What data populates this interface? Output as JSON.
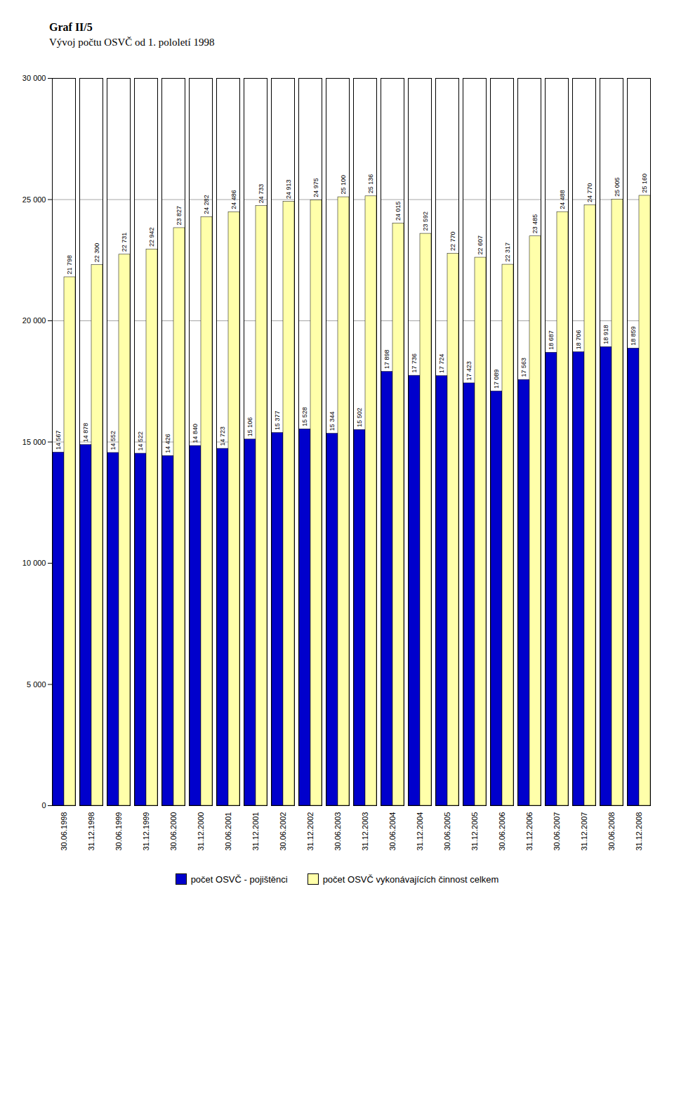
{
  "chart_data": {
    "type": "bar",
    "title": "Graf II/5",
    "subtitle": "Vývoj počtu OSVČ od 1. pololetí 1998",
    "categories": [
      "30.06.1998",
      "31.12.1998",
      "30.06.1999",
      "31.12.1999",
      "30.06.2000",
      "31.12.2000",
      "30.06.2001",
      "31.12.2001",
      "30.06.2002",
      "31.12.2002",
      "30.06.2003",
      "31.12.2003",
      "30.06.2004",
      "31.12.2004",
      "30.06.2005",
      "31.12.2005",
      "30.06.2006",
      "31.12.2006",
      "30.06.2007",
      "31.12.2007",
      "30.06.2008",
      "31.12.2008"
    ],
    "series": [
      {
        "name": "počet OSVČ - pojištěnci",
        "color": "#0000CC",
        "values": [
          14567,
          14878,
          14552,
          14522,
          14426,
          14840,
          14723,
          15106,
          15377,
          15528,
          15344,
          15502,
          17898,
          17736,
          17724,
          17423,
          17089,
          17563,
          18687,
          18706,
          18918,
          18859
        ],
        "value_labels": [
          "14 567",
          "14 878",
          "14 552",
          "14 522",
          "14 426",
          "14 840",
          "14 723",
          "15 106",
          "15 377",
          "15 528",
          "15 344",
          "15 502",
          "17 898",
          "17 736",
          "17 724",
          "17 423",
          "17 089",
          "17 563",
          "18 687",
          "18 706",
          "18 918",
          "18 859"
        ]
      },
      {
        "name": "počet OSVČ vykonávajících činnost celkem",
        "color": "#FFFFAA",
        "values": [
          21798,
          22300,
          22731,
          22942,
          23827,
          24282,
          24486,
          24733,
          24913,
          24975,
          25100,
          25136,
          24015,
          23592,
          22770,
          22607,
          22317,
          23485,
          24488,
          24770,
          25005,
          25160
        ],
        "value_labels": [
          "21 798",
          "22 300",
          "22 731",
          "22 942",
          "23 827",
          "24 282",
          "24 486",
          "24 733",
          "24 913",
          "24 975",
          "25 100",
          "25 136",
          "24 015",
          "23 592",
          "22 770",
          "22 607",
          "22 317",
          "23 485",
          "24 488",
          "24 770",
          "25 005",
          "25 160"
        ]
      }
    ],
    "ylim": [
      0,
      30000
    ],
    "yticks": [
      0,
      {
        "value": 5000,
        "label": "5 000"
      },
      {
        "value": 10000,
        "label": "10 000"
      },
      {
        "value": 15000,
        "label": "15 000"
      },
      {
        "value": 20000,
        "label": "20 000"
      },
      {
        "value": 25000,
        "label": "25 000"
      },
      {
        "value": 30000,
        "label": "30 000"
      }
    ],
    "grid": true,
    "legend": "bottom",
    "data_labels": true
  }
}
